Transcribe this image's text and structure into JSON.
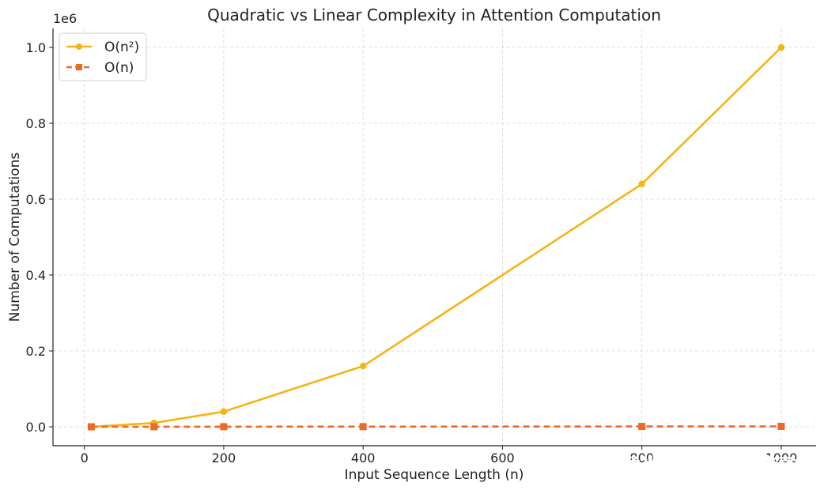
{
  "chart_data": {
    "type": "line",
    "title": "Quadratic vs Linear Complexity in Attention Computation",
    "xlabel": "Input Sequence Length (n)",
    "ylabel": "Number of Computations",
    "y_offset_label": "1e6",
    "x_ticks": [
      0,
      200,
      400,
      600,
      800,
      1000
    ],
    "x_tick_labels": [
      "0",
      "200",
      "400",
      "600",
      "800",
      "1000"
    ],
    "y_ticks": [
      0,
      200000,
      400000,
      600000,
      800000,
      1000000
    ],
    "y_tick_labels": [
      "0.0",
      "0.2",
      "0.4",
      "0.6",
      "0.8",
      "1.0"
    ],
    "xlim": [
      -45,
      1050
    ],
    "ylim": [
      -50000,
      1050000
    ],
    "grid": true,
    "legend_position": "top-left",
    "series": [
      {
        "name": "O(n²)",
        "color": "#f5b412",
        "line_style": "solid",
        "marker": "circle",
        "x": [
          10,
          100,
          200,
          400,
          800,
          1000
        ],
        "y": [
          100,
          10000,
          40000,
          160000,
          640000,
          1000000
        ]
      },
      {
        "name": "O(n)",
        "color": "#eb6a24",
        "line_style": "dashed",
        "marker": "square",
        "x": [
          10,
          100,
          200,
          400,
          800,
          1000
        ],
        "y": [
          10,
          100,
          200,
          400,
          800,
          1000
        ]
      }
    ]
  },
  "watermark": "掘金技术社区 @ 数据智能老司机"
}
